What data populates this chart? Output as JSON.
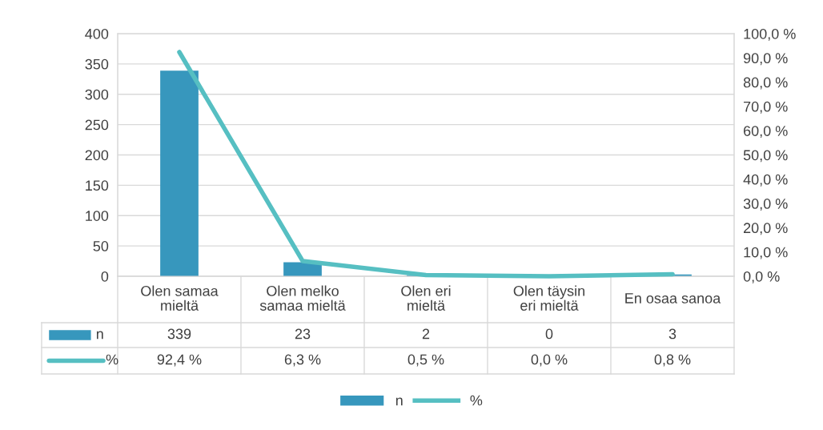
{
  "chart_data": {
    "type": "bar",
    "categories": [
      "Olen samaa mieltä",
      "Olen melko samaa mieltä",
      "Olen eri mieltä",
      "Olen täysin eri mieltä",
      "En osaa sanoa"
    ],
    "series": [
      {
        "name": "n",
        "color": "#3797bd",
        "values": [
          339,
          23,
          2,
          0,
          3
        ],
        "value_labels": [
          "339",
          "23",
          "2",
          "0",
          "3"
        ]
      },
      {
        "name": "%",
        "type": "line",
        "axis": "y2",
        "color": "#56bfc2",
        "values": [
          92.4,
          6.3,
          0.5,
          0.0,
          0.8
        ],
        "value_labels": [
          "92,4 %",
          "6,3 %",
          "0,5 %",
          "0,0 %",
          "0,8 %"
        ]
      }
    ],
    "ylim": [
      0,
      400
    ],
    "yticks": [
      0,
      50,
      100,
      150,
      200,
      250,
      300,
      350,
      400
    ],
    "y2lim": [
      0,
      100
    ],
    "y2ticks": [
      {
        "value": 0,
        "label": "0,0 %"
      },
      {
        "value": 10,
        "label": "10,0 %"
      },
      {
        "value": 20,
        "label": "20,0 %"
      },
      {
        "value": 30,
        "label": "30,0 %"
      },
      {
        "value": 40,
        "label": "40,0 %"
      },
      {
        "value": 50,
        "label": "50,0 %"
      },
      {
        "value": 60,
        "label": "60,0 %"
      },
      {
        "value": 70,
        "label": "70,0 %"
      },
      {
        "value": 80,
        "label": "80,0 %"
      },
      {
        "value": 90,
        "label": "90,0 %"
      },
      {
        "value": 100,
        "label": "100,0 %"
      }
    ],
    "grid": "y",
    "legend": "bottom",
    "line_style": "solid",
    "marker": "none"
  }
}
